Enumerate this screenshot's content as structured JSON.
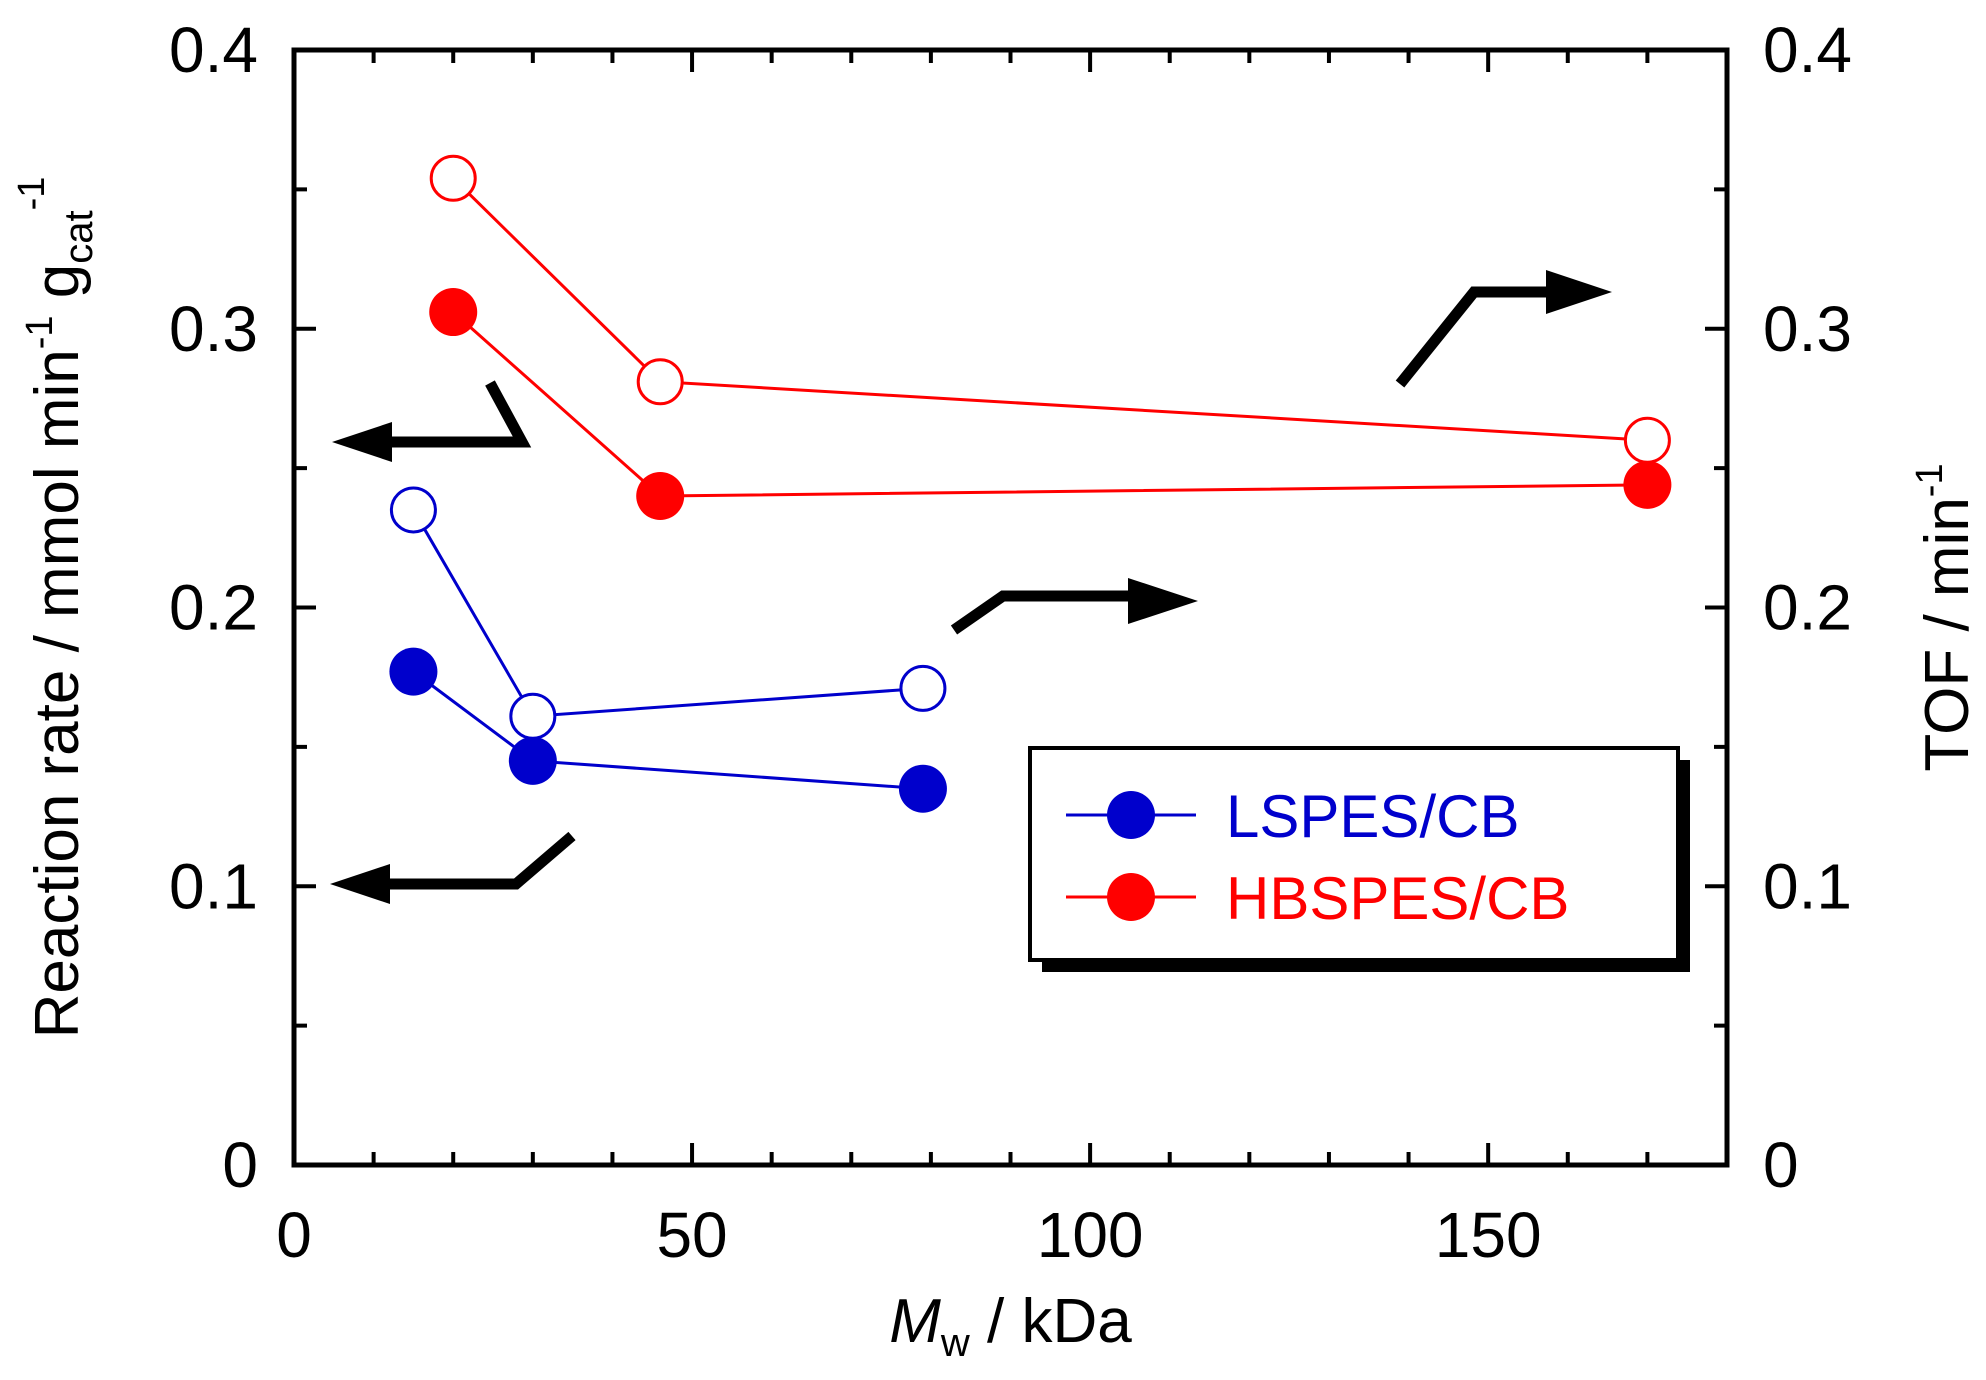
{
  "chart_data": {
    "type": "line",
    "xlabel": {
      "main": "M",
      "sub": "w",
      "rest": " / kDa"
    },
    "ylabel_left": {
      "main": "Reaction rate / mmol min",
      "sup1": "-1",
      "mid": " g",
      "sub": "cat",
      "sup2": "-1"
    },
    "ylabel_right": {
      "main": "TOF / min",
      "sup": "-1"
    },
    "xlim": [
      0,
      180
    ],
    "ylim_left": [
      0,
      0.4
    ],
    "ylim_right": [
      0,
      0.4
    ],
    "x_ticks": [
      0,
      50,
      100,
      150
    ],
    "x_tick_labels": [
      "0",
      "50",
      "100",
      "150"
    ],
    "x_minor_step": 10,
    "y_ticks": [
      0,
      0.1,
      0.2,
      0.3,
      0.4
    ],
    "y_tick_labels_left": [
      "0",
      "0.1",
      "0.2",
      "0.3",
      "0.4"
    ],
    "y_tick_labels_right": [
      "0",
      "0.1",
      "0.2",
      "0.3",
      "0.4"
    ],
    "y_minor_step": 0.05,
    "series": [
      {
        "name": "LSPES/CB",
        "axis": "left",
        "marker": "filled",
        "color": "#0000cc",
        "x": [
          15,
          30,
          79
        ],
        "y": [
          0.177,
          0.145,
          0.135
        ]
      },
      {
        "name": "LSPES/CB",
        "axis": "right",
        "marker": "open",
        "color": "#0000cc",
        "x": [
          15,
          30,
          79
        ],
        "y": [
          0.235,
          0.161,
          0.171
        ]
      },
      {
        "name": "HBSPES/CB",
        "axis": "left",
        "marker": "filled",
        "color": "#ff0000",
        "x": [
          20,
          46,
          170
        ],
        "y": [
          0.306,
          0.24,
          0.244
        ]
      },
      {
        "name": "HBSPES/CB",
        "axis": "right",
        "marker": "open",
        "color": "#ff0000",
        "x": [
          20,
          46,
          170
        ],
        "y": [
          0.354,
          0.281,
          0.26
        ]
      }
    ],
    "legend": {
      "position": "lower-right",
      "entries": [
        {
          "label": "LSPES/CB",
          "color": "#0000cc"
        },
        {
          "label": "HBSPES/CB",
          "color": "#ff0000"
        }
      ]
    },
    "annotations": [
      {
        "type": "arrow",
        "points_to": "left axis",
        "series": "HBSPES/CB filled"
      },
      {
        "type": "arrow",
        "points_to": "left axis",
        "series": "LSPES/CB filled"
      },
      {
        "type": "arrow",
        "points_to": "right axis",
        "series": "HBSPES/CB open"
      },
      {
        "type": "arrow",
        "points_to": "right axis",
        "series": "LSPES/CB open"
      }
    ]
  }
}
